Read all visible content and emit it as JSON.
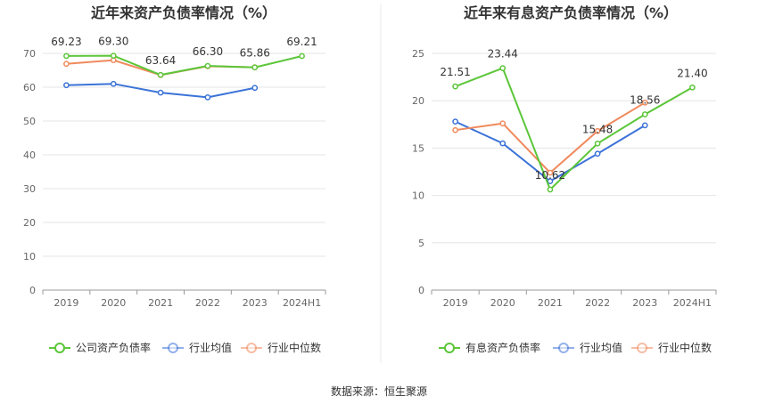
{
  "source_text": "数据来源：恒生聚源",
  "colors": {
    "company": "#5cc639",
    "avg": "#3b73d8",
    "median": "#f08a5d"
  },
  "chart_data": [
    {
      "type": "line",
      "title": "近年来资产负债率情况（%）",
      "categories": [
        "2019",
        "2020",
        "2021",
        "2022",
        "2023",
        "2024H1"
      ],
      "ylim": [
        0,
        70
      ],
      "yticks": [
        0,
        10,
        20,
        30,
        40,
        50,
        60,
        70
      ],
      "legend_position": "bottom",
      "series": [
        {
          "name": "公司资产负债率",
          "key": "company",
          "values": [
            69.23,
            69.3,
            63.64,
            66.3,
            65.86,
            69.21
          ],
          "labels": [
            "69.23",
            "69.30",
            "63.64",
            "66.30",
            "65.86",
            "69.21"
          ]
        },
        {
          "name": "行业均值",
          "key": "avg",
          "values": [
            60.6,
            61.0,
            58.4,
            57.0,
            59.8,
            null
          ]
        },
        {
          "name": "行业中位数",
          "key": "median",
          "values": [
            66.9,
            68.0,
            63.6,
            66.2,
            65.9,
            null
          ]
        }
      ]
    },
    {
      "type": "line",
      "title": "近年来有息资产负债率情况（%）",
      "categories": [
        "2019",
        "2020",
        "2021",
        "2022",
        "2023",
        "2024H1"
      ],
      "ylim": [
        0,
        25
      ],
      "yticks": [
        0,
        5,
        10,
        15,
        20,
        25
      ],
      "legend_position": "bottom",
      "series": [
        {
          "name": "有息资产负债率",
          "key": "company",
          "values": [
            21.51,
            23.44,
            10.62,
            15.48,
            18.56,
            21.4
          ],
          "labels": [
            "21.51",
            "23.44",
            "10.62",
            "15.48",
            "18.56",
            "21.40"
          ]
        },
        {
          "name": "行业均值",
          "key": "avg",
          "values": [
            17.8,
            15.5,
            11.5,
            14.4,
            17.4,
            null
          ]
        },
        {
          "name": "行业中位数",
          "key": "median",
          "values": [
            16.9,
            17.6,
            12.4,
            16.8,
            19.8,
            null
          ]
        }
      ]
    }
  ]
}
